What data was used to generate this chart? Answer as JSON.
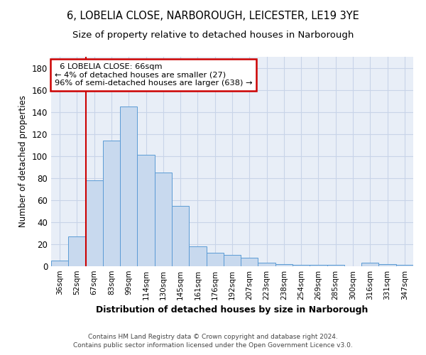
{
  "title1": "6, LOBELIA CLOSE, NARBOROUGH, LEICESTER, LE19 3YE",
  "title2": "Size of property relative to detached houses in Narborough",
  "xlabel": "Distribution of detached houses by size in Narborough",
  "ylabel": "Number of detached properties",
  "footnote1": "Contains HM Land Registry data © Crown copyright and database right 2024.",
  "footnote2": "Contains public sector information licensed under the Open Government Licence v3.0.",
  "categories": [
    "36sqm",
    "52sqm",
    "67sqm",
    "83sqm",
    "99sqm",
    "114sqm",
    "130sqm",
    "145sqm",
    "161sqm",
    "176sqm",
    "192sqm",
    "207sqm",
    "223sqm",
    "238sqm",
    "254sqm",
    "269sqm",
    "285sqm",
    "300sqm",
    "316sqm",
    "331sqm",
    "347sqm"
  ],
  "values": [
    5,
    27,
    78,
    114,
    145,
    101,
    85,
    55,
    18,
    12,
    10,
    8,
    3,
    2,
    1,
    1,
    1,
    0,
    3,
    2,
    1
  ],
  "bar_color": "#c8d9ee",
  "bar_edge_color": "#5b9bd5",
  "red_line_bar_index": 2,
  "annotation_title": "6 LOBELIA CLOSE: 66sqm",
  "annotation_line1": "← 4% of detached houses are smaller (27)",
  "annotation_line2": "96% of semi-detached houses are larger (638) →",
  "annotation_box_color": "#ffffff",
  "annotation_border_color": "#cc0000",
  "ylim": [
    0,
    190
  ],
  "yticks": [
    0,
    20,
    40,
    60,
    80,
    100,
    120,
    140,
    160,
    180
  ],
  "grid_color": "#c8d4e8",
  "background_color": "#e8eef7",
  "title_fontsize": 10.5,
  "subtitle_fontsize": 9.5,
  "bar_width": 1.0
}
